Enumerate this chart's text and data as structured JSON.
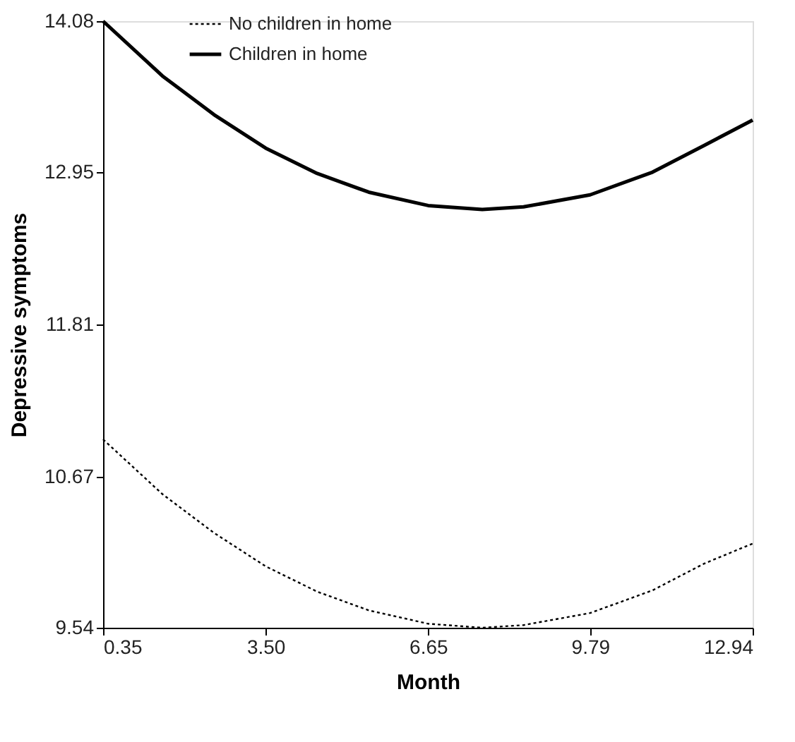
{
  "chart_data": {
    "type": "line",
    "xlabel": "Month",
    "ylabel": "Depressive symptoms",
    "x": [
      0.35,
      1.5,
      2.5,
      3.5,
      4.5,
      5.5,
      6.65,
      7.7,
      8.5,
      9.79,
      11,
      12,
      12.94
    ],
    "series": [
      {
        "name": "No children in home",
        "color": "#000000",
        "line_style": "dotted",
        "values": [
          10.95,
          10.54,
          10.25,
          10.0,
          9.81,
          9.67,
          9.57,
          9.54,
          9.56,
          9.65,
          9.82,
          10.02,
          10.17
        ]
      },
      {
        "name": "Children in home",
        "color": "#000000",
        "line_style": "solid",
        "values": [
          14.08,
          13.67,
          13.38,
          13.13,
          12.94,
          12.8,
          12.7,
          12.67,
          12.69,
          12.78,
          12.95,
          13.15,
          13.34
        ]
      }
    ],
    "xlim": [
      0.35,
      12.94
    ],
    "xticks": [
      0.35,
      {
        "value": 3.5,
        "label": "3.50"
      },
      6.65,
      9.79,
      12.94
    ],
    "ylim": [
      9.54,
      14.08
    ],
    "yticks": [
      9.54,
      10.67,
      11.81,
      12.95,
      14.08
    ],
    "grid": false,
    "legend": "top left",
    "marker": "none"
  }
}
